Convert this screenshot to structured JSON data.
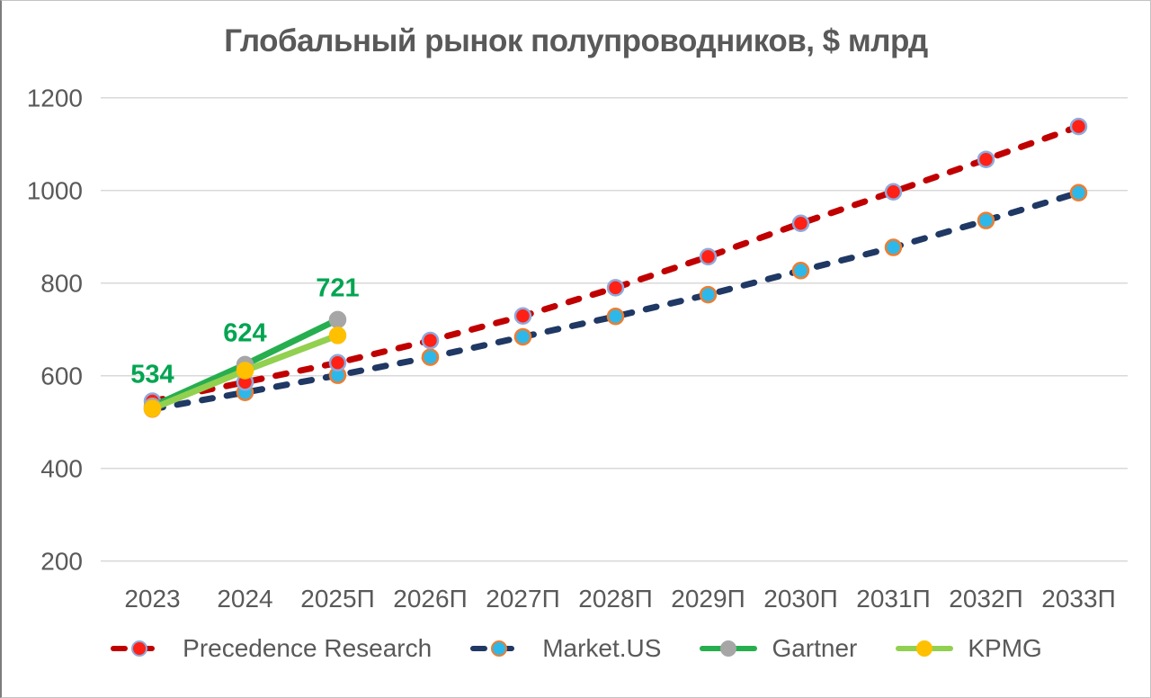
{
  "chart_data": {
    "type": "line",
    "title": "Глобальный рынок полупроводников, $ млрд",
    "title_color": "#595959",
    "categories": [
      "2023",
      "2024",
      "2025П",
      "2026П",
      "2027П",
      "2028П",
      "2029П",
      "2030П",
      "2031П",
      "2032П",
      "2033П"
    ],
    "ylim": [
      200,
      1200
    ],
    "yticks": [
      1200,
      1000,
      800,
      600,
      400,
      200
    ],
    "ytick_interval": 200,
    "grid": "horizontal-only",
    "gridline_color": "#D9D9D9",
    "axis_label_color": "#595959",
    "legend_position": "bottom",
    "series": [
      {
        "name": "Precedence Research",
        "line_style": "dashed",
        "line_color": "#C00000",
        "marker_color": "#FF2116",
        "marker_border_color": "#8FAADC",
        "values": [
          545,
          586,
          628,
          676,
          729,
          790,
          857,
          929,
          997,
          1067,
          1138
        ]
      },
      {
        "name": "Market.US",
        "line_style": "dashed",
        "line_color": "#1F3864",
        "marker_color": "#2EB8E9",
        "marker_border_color": "#ED7D31",
        "values": [
          528,
          564,
          601,
          640,
          684,
          728,
          775,
          827,
          877,
          935,
          995
        ]
      },
      {
        "name": "Gartner",
        "line_style": "solid",
        "line_color": "#27AE4F",
        "marker_color": "#A6A6A6",
        "marker_border_color": "#A6A6A6",
        "values": [
          534,
          624,
          721
        ],
        "data_labels": [
          "534",
          "624",
          "721"
        ],
        "data_label_color": "#00A551"
      },
      {
        "name": "KPMG",
        "line_style": "solid",
        "line_color": "#92D050",
        "marker_color": "#FFC000",
        "marker_border_color": "#FFC000",
        "values": [
          529,
          611,
          687
        ]
      }
    ]
  }
}
